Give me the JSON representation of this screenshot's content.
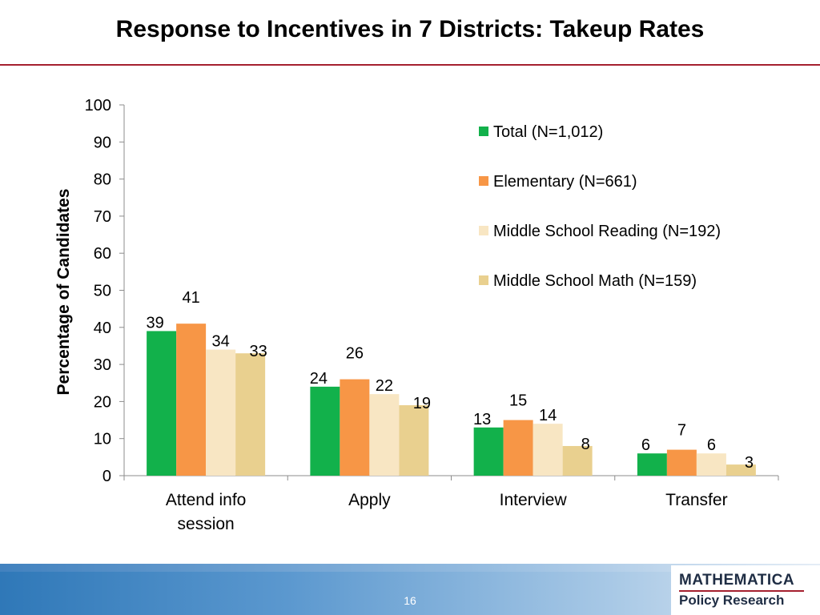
{
  "slide": {
    "title": "Response to Incentives in 7 Districts: Takeup Rates",
    "page_number": "16",
    "logo_line1": "MATHEMATICA",
    "logo_line2": "Policy Research",
    "accent_color": "#a5202f"
  },
  "chart_data": {
    "type": "bar",
    "title": "",
    "xlabel": "",
    "ylabel": "Percentage of Candidates",
    "ylim": [
      0,
      100
    ],
    "yticks": [
      0,
      10,
      20,
      30,
      40,
      50,
      60,
      70,
      80,
      90,
      100
    ],
    "categories": [
      [
        "Attend info",
        "session"
      ],
      [
        "Apply"
      ],
      [
        "Interview"
      ],
      [
        "Transfer"
      ]
    ],
    "series": [
      {
        "name": "Total  (N=1,012)",
        "color": "#12b14b",
        "values": [
          39,
          24,
          13,
          6
        ]
      },
      {
        "name": "Elementary  (N=661)",
        "color": "#f79646",
        "values": [
          41,
          26,
          15,
          7
        ]
      },
      {
        "name": "Middle School Reading (N=192)",
        "color": "#f8e6c3",
        "values": [
          34,
          22,
          14,
          6
        ]
      },
      {
        "name": "Middle School Math (N=159)",
        "color": "#e9d08f",
        "values": [
          33,
          19,
          8,
          3
        ]
      }
    ],
    "legend_position": "top-right",
    "grid": false,
    "data_labels": true
  }
}
